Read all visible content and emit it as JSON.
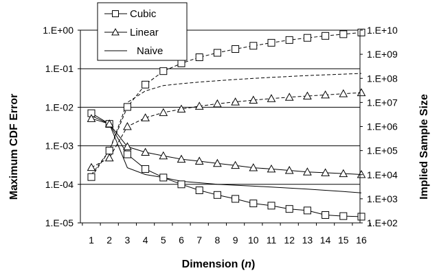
{
  "chart_data": {
    "type": "line",
    "title": "",
    "xlabel": "Dimension (n)",
    "xlabel_main": "Dimension (",
    "xlabel_var": "n",
    "xlabel_close": ")",
    "ylabel_left": "Maximum CDF Error",
    "ylabel_right": "Implied Sample Size",
    "x": [
      1,
      2,
      3,
      4,
      5,
      6,
      7,
      8,
      9,
      10,
      11,
      12,
      13,
      14,
      15,
      16
    ],
    "y_left_ticks": [
      "1.E+00",
      "1.E-01",
      "1.E-02",
      "1.E-03",
      "1.E-04",
      "1.E-05"
    ],
    "y_left_scale": "log",
    "y_left_range": [
      1e-05,
      1
    ],
    "y_right_ticks": [
      "1.E+10",
      "1.E+09",
      "1.E+08",
      "1.E+07",
      "1.E+06",
      "1.E+05",
      "1.E+04",
      "1.E+03",
      "1.E+02"
    ],
    "y_right_scale": "log",
    "y_right_range": [
      100,
      10000000000
    ],
    "grid": "horizontal major lines on left axis",
    "legend": {
      "placement": "top-left, above plot",
      "items": [
        {
          "label": "Cubic",
          "marker": "square"
        },
        {
          "label": "Linear",
          "marker": "triangle"
        },
        {
          "label": "Naive",
          "marker": "none"
        }
      ]
    },
    "series": [
      {
        "name": "Cubic",
        "axis": "left",
        "style": "solid",
        "marker": "square",
        "values": [
          0.007,
          0.0037,
          0.0006,
          0.00025,
          0.00015,
          0.0001,
          7e-05,
          5.3e-05,
          4.2e-05,
          3.2e-05,
          2.8e-05,
          2.3e-05,
          2.1e-05,
          1.6e-05,
          1.5e-05,
          1.45e-05
        ]
      },
      {
        "name": "Linear",
        "axis": "left",
        "style": "solid",
        "marker": "triangle",
        "values": [
          0.0051,
          0.0037,
          0.00095,
          0.00068,
          0.00055,
          0.00045,
          0.0004,
          0.00035,
          0.00031,
          0.00027,
          0.00025,
          0.00023,
          0.00021,
          0.0002,
          0.00019,
          0.00018
        ]
      },
      {
        "name": "Naive",
        "axis": "left",
        "style": "solid",
        "marker": "none",
        "values": [
          0.006,
          0.0037,
          0.00027,
          0.00018,
          0.00015,
          0.00012,
          0.00011,
          0.0001,
          9.5e-05,
          9e-05,
          8.5e-05,
          8e-05,
          7.5e-05,
          7e-05,
          6.5e-05,
          6e-05
        ]
      },
      {
        "name": "Cubic",
        "axis": "right",
        "style": "dashed",
        "marker": "square",
        "values": [
          8000,
          100000,
          6500000,
          55000000,
          200000000,
          420000000,
          750000000,
          1150000000,
          1650000000,
          2250000000,
          3000000000,
          3900000000,
          4800000000,
          5800000000,
          6800000000,
          8000000000
        ]
      },
      {
        "name": "Linear",
        "axis": "right",
        "style": "dashed",
        "marker": "triangle",
        "values": [
          20000,
          50000,
          1000000,
          2300000,
          3800000,
          5300000,
          7000000,
          8800000,
          10500000,
          12500000,
          14500000,
          16500000,
          18500000,
          20500000,
          23000000,
          25500000
        ]
      },
      {
        "name": "Naive",
        "axis": "right",
        "style": "dashed",
        "marker": "none",
        "values": [
          10000,
          100000,
          10000000,
          30000000,
          50000000,
          60000000,
          70000000,
          80000000,
          90000000,
          100000000,
          110000000,
          120000000,
          130000000,
          140000000,
          150000000,
          160000000
        ]
      }
    ]
  }
}
